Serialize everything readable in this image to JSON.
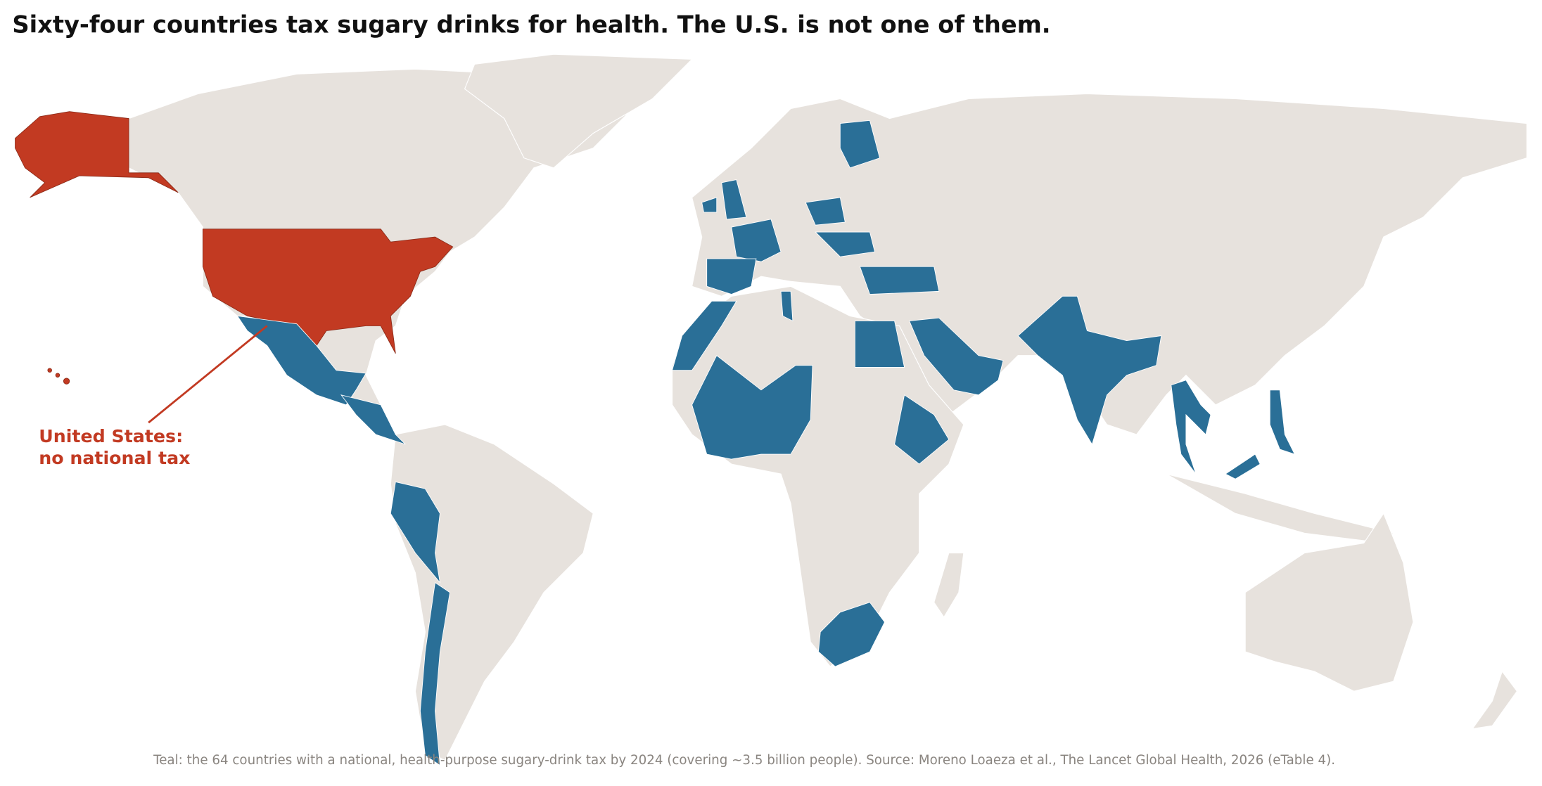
{
  "title": "Sixty-four countries tax sugary drinks for health. The U.S. is not one of them.",
  "annotation": [
    "United States:",
    "no national tax"
  ],
  "footnote": "Teal: the 64 countries with a national, health-purpose sugary-drink tax by 2024 (covering ~3.5 billion people). Source: Moreno Loaeza et al., The Lancet Global Health, 2026 (eTable 4)."
}
